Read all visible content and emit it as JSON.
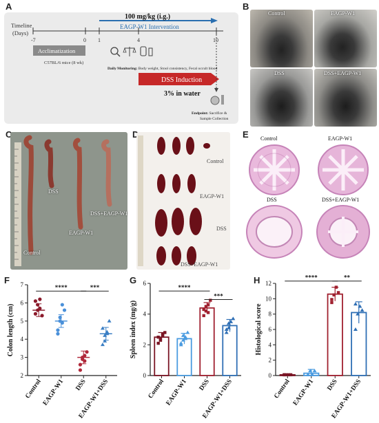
{
  "panel_labels": [
    "A",
    "B",
    "C",
    "D",
    "E",
    "F",
    "G",
    "H"
  ],
  "timeline": {
    "label_line1": "Timeline",
    "label_line2": "(Days)",
    "ticks": [
      "-7",
      "0",
      "1",
      "4",
      "10"
    ],
    "dose": "100 mg/kg (i.g.)",
    "intervention": "EAGP-W1  Intervention",
    "acclimatization": "Acclimatization",
    "mice": "C57BL/6 mice (8 wk)",
    "monitoring_bold": "Daily Monitoring:",
    "monitoring_text": " Body weight, Stool consistency, Fecal occult blood",
    "dss_induction": "DSS Induction",
    "dss_water": "3% in water",
    "endpoint_bold": "Endpoint:",
    "endpoint_text": " Sacrifice &",
    "endpoint_line2": "Sample Collection",
    "colors": {
      "intervention": "#2a6fb0",
      "dss": "#c62828",
      "accl": "#8a8a8a"
    }
  },
  "panel_b": {
    "labels": [
      "Control",
      "EAGP-W1",
      "DSS",
      "DSS+EAGP-W1"
    ]
  },
  "panel_c": {
    "labels": [
      "DSS",
      "DSS+EAGP-W1",
      "EAGP-W1",
      "Control"
    ]
  },
  "panel_d": {
    "labels": [
      "Control",
      "EAGP-W1",
      "DSS",
      "DSS+EAGP-W1"
    ]
  },
  "panel_e": {
    "labels": [
      "Control",
      "EAGP-W1",
      "DSS",
      "DSS+EAGP-W1"
    ]
  },
  "chart_data": [
    {
      "panel": "F",
      "type": "scatter",
      "ylabel": "Colon length (cm)",
      "ylim": [
        2,
        7
      ],
      "yticks": [
        2,
        3,
        4,
        5,
        6,
        7
      ],
      "categories": [
        "Control",
        "EAGP-W1",
        "DSS",
        "EAGP-W1+DSS"
      ],
      "colors": [
        "#8b1a2b",
        "#4a90d9",
        "#b0283a",
        "#3b7fc4"
      ],
      "points": [
        [
          5.4,
          5.6,
          5.7,
          5.3,
          6.1,
          5.9,
          6.2
        ],
        [
          4.5,
          5.2,
          5.9,
          5.6,
          4.3,
          5.0,
          4.9
        ],
        [
          2.6,
          2.9,
          3.1,
          3.3,
          2.3,
          3.0,
          2.8
        ],
        [
          3.7,
          4.2,
          4.4,
          5.0,
          4.6,
          3.9,
          4.3
        ]
      ],
      "means": [
        5.6,
        5.0,
        3.0,
        4.3
      ],
      "significance": [
        {
          "from": 0,
          "to": 2,
          "label": "****",
          "y": 6.65
        },
        {
          "from": 2,
          "to": 3,
          "label": "***",
          "y": 6.65
        }
      ]
    },
    {
      "panel": "G",
      "type": "bar",
      "ylabel": "Spleen index (mg/g)",
      "ylim": [
        0,
        6
      ],
      "yticks": [
        0,
        2,
        4,
        6
      ],
      "categories": [
        "Control",
        "EAGP-W1",
        "DSS",
        "EAGP-W1+DSS"
      ],
      "colors": [
        "#7a1524",
        "#4a9be0",
        "#a0202f",
        "#2f6fb5"
      ],
      "values": [
        2.5,
        2.4,
        4.4,
        3.25
      ],
      "errors": [
        0.3,
        0.35,
        0.35,
        0.4
      ],
      "points": [
        [
          2.1,
          2.4,
          2.6,
          2.8,
          2.5,
          2.3,
          2.7
        ],
        [
          2.0,
          2.3,
          2.5,
          2.8,
          2.1,
          2.6,
          2.4
        ],
        [
          3.9,
          4.2,
          4.6,
          4.9,
          4.3,
          4.5,
          4.1
        ],
        [
          2.8,
          3.1,
          3.5,
          3.7,
          3.0,
          3.4
        ]
      ],
      "significance": [
        {
          "from": 0,
          "to": 2,
          "label": "****",
          "y": 5.5
        },
        {
          "from": 2,
          "to": 3,
          "label": "***",
          "y": 4.95
        }
      ]
    },
    {
      "panel": "H",
      "type": "bar",
      "ylabel": "Histological score",
      "ylim": [
        0,
        12
      ],
      "yticks": [
        0,
        2,
        4,
        6,
        8,
        10,
        12
      ],
      "categories": [
        "Control",
        "EAGP-W1",
        "DSS",
        "EAGP-W1+DSS"
      ],
      "colors": [
        "#7a1524",
        "#4a9be0",
        "#a0202f",
        "#2f6fb5"
      ],
      "values": [
        0.1,
        0.3,
        10.6,
        8.2
      ],
      "errors": [
        0.05,
        0.5,
        0.9,
        1.4
      ],
      "points": [
        [
          0.1,
          0.1,
          0.1,
          0.1,
          0.1
        ],
        [
          0.1,
          0.6,
          0.1,
          0.6,
          0.1
        ],
        [
          9.5,
          10.5,
          11.5,
          10.8,
          9.9
        ],
        [
          6.0,
          8.0,
          9.0,
          8.5,
          9.3
        ]
      ],
      "significance": [
        {
          "from": 0,
          "to": 2,
          "label": "****",
          "y": 12.3
        },
        {
          "from": 2,
          "to": 3,
          "label": "**",
          "y": 12.3
        }
      ]
    }
  ]
}
